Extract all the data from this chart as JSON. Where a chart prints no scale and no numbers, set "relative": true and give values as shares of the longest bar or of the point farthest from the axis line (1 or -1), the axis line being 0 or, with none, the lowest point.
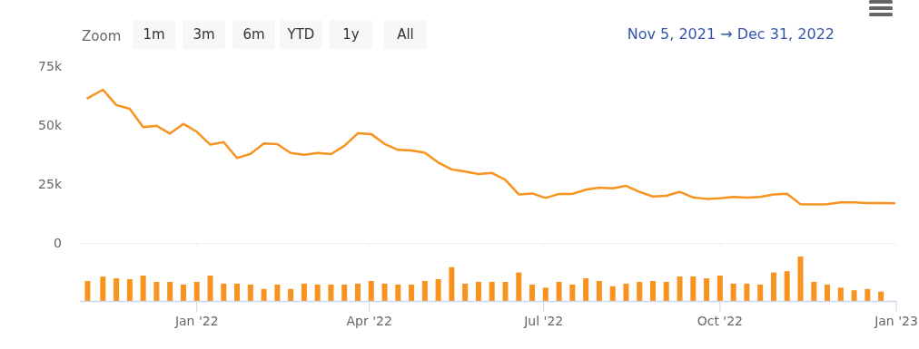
{
  "chart_data": [
    {
      "type": "line",
      "annotations": [
        "Zoom",
        "1m",
        "3m",
        "6m",
        "YTD",
        "1y",
        "All",
        "Nov 5, 2021 → Dec 31, 2022"
      ],
      "x": [
        "2021-11-05",
        "2021-11-13",
        "2021-11-20",
        "2021-11-27",
        "2021-12-04",
        "2021-12-11",
        "2021-12-18",
        "2021-12-25",
        "2022-01-01",
        "2022-01-08",
        "2022-01-15",
        "2022-01-22",
        "2022-01-29",
        "2022-02-05",
        "2022-02-12",
        "2022-02-19",
        "2022-02-26",
        "2022-03-05",
        "2022-03-12",
        "2022-03-19",
        "2022-03-26",
        "2022-04-02",
        "2022-04-09",
        "2022-04-16",
        "2022-04-23",
        "2022-04-30",
        "2022-05-07",
        "2022-05-14",
        "2022-05-21",
        "2022-05-28",
        "2022-06-04",
        "2022-06-11",
        "2022-06-18",
        "2022-06-25",
        "2022-07-02",
        "2022-07-09",
        "2022-07-16",
        "2022-07-23",
        "2022-07-30",
        "2022-08-06",
        "2022-08-13",
        "2022-08-20",
        "2022-08-27",
        "2022-09-03",
        "2022-09-10",
        "2022-09-17",
        "2022-09-24",
        "2022-10-01",
        "2022-10-08",
        "2022-10-15",
        "2022-10-22",
        "2022-10-29",
        "2022-11-05",
        "2022-11-12",
        "2022-11-19",
        "2022-11-26",
        "2022-12-03",
        "2022-12-10",
        "2022-12-17",
        "2022-12-24",
        "2022-12-31"
      ],
      "series": [
        {
          "color": "#f7931e",
          "values": [
            61400,
            65000,
            58500,
            56900,
            49100,
            49700,
            46400,
            50500,
            47200,
            41700,
            42800,
            36000,
            37800,
            42200,
            41900,
            38200,
            37400,
            38200,
            37700,
            41200,
            46500,
            46200,
            42000,
            39500,
            39200,
            38300,
            34100,
            31200,
            30300,
            29200,
            29700,
            26800,
            20600,
            21000,
            19100,
            20800,
            20800,
            22600,
            23500,
            23200,
            24200,
            21700,
            19700,
            20000,
            21700,
            19300,
            18700,
            18900,
            19500,
            19200,
            19500,
            20600,
            20900,
            16400,
            16300,
            16400,
            17200,
            17200,
            16900,
            16900,
            16800
          ]
        }
      ],
      "xlim": [
        "2021-11-01",
        "2023-01-01"
      ],
      "xticks": [
        {
          "value": "2022-01-01",
          "label": null
        },
        {
          "value": "2022-04-01",
          "label": null
        },
        {
          "value": "2022-07-01",
          "label": null
        },
        {
          "value": "2022-10-01",
          "label": null
        },
        {
          "value": "2023-01-01",
          "label": null
        }
      ],
      "ylim": [
        0,
        75000
      ],
      "yticks": [
        {
          "value": 0,
          "label": "0"
        },
        {
          "value": 25000,
          "label": "25k"
        },
        {
          "value": 50000,
          "label": "50k"
        },
        {
          "value": 75000,
          "label": "75k"
        }
      ],
      "tick_labels": "y"
    },
    {
      "type": "bar",
      "relative": true,
      "x": [
        "2021-11-05",
        "2021-11-13",
        "2021-11-20",
        "2021-11-27",
        "2021-12-04",
        "2021-12-11",
        "2021-12-18",
        "2021-12-25",
        "2022-01-01",
        "2022-01-08",
        "2022-01-15",
        "2022-01-22",
        "2022-01-29",
        "2022-02-05",
        "2022-02-12",
        "2022-02-19",
        "2022-02-26",
        "2022-03-05",
        "2022-03-12",
        "2022-03-19",
        "2022-03-26",
        "2022-04-02",
        "2022-04-09",
        "2022-04-16",
        "2022-04-23",
        "2022-04-30",
        "2022-05-07",
        "2022-05-14",
        "2022-05-21",
        "2022-05-28",
        "2022-06-04",
        "2022-06-11",
        "2022-06-18",
        "2022-06-25",
        "2022-07-02",
        "2022-07-09",
        "2022-07-16",
        "2022-07-23",
        "2022-07-30",
        "2022-08-06",
        "2022-08-13",
        "2022-08-20",
        "2022-08-27",
        "2022-09-03",
        "2022-09-10",
        "2022-09-17",
        "2022-09-24",
        "2022-10-01",
        "2022-10-08",
        "2022-10-15",
        "2022-10-22",
        "2022-10-29",
        "2022-11-05",
        "2022-11-12",
        "2022-11-19",
        "2022-11-26",
        "2022-12-03",
        "2022-12-10",
        "2022-12-17",
        "2022-12-24"
      ],
      "series": [
        {
          "color": "#f7931e",
          "values": [
            0.45,
            0.55,
            0.51,
            0.49,
            0.57,
            0.43,
            0.43,
            0.37,
            0.43,
            0.57,
            0.39,
            0.39,
            0.37,
            0.27,
            0.37,
            0.27,
            0.39,
            0.37,
            0.37,
            0.37,
            0.39,
            0.45,
            0.39,
            0.37,
            0.37,
            0.45,
            0.49,
            0.76,
            0.39,
            0.43,
            0.43,
            0.43,
            0.64,
            0.37,
            0.3,
            0.43,
            0.37,
            0.51,
            0.45,
            0.33,
            0.39,
            0.43,
            0.45,
            0.43,
            0.55,
            0.55,
            0.51,
            0.57,
            0.39,
            0.39,
            0.37,
            0.64,
            0.67,
            1,
            0.43,
            0.37,
            0.3,
            0.24,
            0.27,
            0.21
          ]
        }
      ],
      "xlim": [
        "2021-11-01",
        "2023-01-01"
      ],
      "xticks": [
        {
          "value": "2022-01-01",
          "label": "Jan '22"
        },
        {
          "value": "2022-04-01",
          "label": "Apr '22"
        },
        {
          "value": "2022-07-01",
          "label": "Jul '22"
        },
        {
          "value": "2022-10-01",
          "label": "Oct '22"
        },
        {
          "value": "2023-01-01",
          "label": "Jan '23"
        }
      ],
      "tick_labels": "x"
    }
  ]
}
